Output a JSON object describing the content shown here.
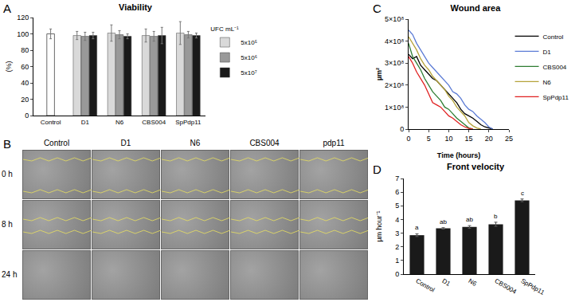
{
  "chart_data": [
    {
      "panel": "A",
      "type": "bar",
      "title": "Viability",
      "y_label": "(%)",
      "categories": [
        "Control",
        "D1",
        "N6",
        "CBS004",
        "SpPdp11"
      ],
      "legend_title": "UFC mL⁻¹",
      "legend": "right",
      "grid": false,
      "ylim": [
        0,
        120
      ],
      "yticks": [
        0,
        20,
        40,
        60,
        80,
        100,
        120
      ],
      "series": [
        {
          "name": "5x10⁵",
          "color": "#d9d9d9",
          "values": [
            null,
            98,
            101,
            98,
            101
          ],
          "errors": [
            null,
            5,
            10,
            8,
            14
          ]
        },
        {
          "name": "5x10⁶",
          "color": "#999999",
          "values": [
            null,
            97,
            99,
            97,
            99
          ],
          "errors": [
            null,
            5,
            5,
            6,
            4
          ]
        },
        {
          "name": "5x10⁷",
          "color": "#1a1a1a",
          "values": [
            null,
            98,
            97,
            98,
            98
          ],
          "errors": [
            null,
            4,
            3,
            10,
            3
          ]
        }
      ],
      "reference_bar": {
        "category": "Control",
        "value": 100,
        "error": 6,
        "color": "#ffffff"
      }
    },
    {
      "panel": "C",
      "type": "line",
      "title": "Wound area",
      "x_label": "Time (hours)",
      "y_label": "µm²",
      "legend": "right",
      "grid": false,
      "xlim": [
        0,
        25
      ],
      "xticks": [
        0,
        5,
        10,
        15,
        20,
        25
      ],
      "ylim": [
        0,
        500000000
      ],
      "yticks": [
        0,
        {
          "value": 100000000,
          "label": "1×10⁸"
        },
        {
          "value": 200000000,
          "label": "2×10⁸"
        },
        {
          "value": 300000000,
          "label": "3×10⁸"
        },
        {
          "value": 400000000,
          "label": "4×10⁸"
        },
        {
          "value": 500000000,
          "label": "5×10⁸"
        }
      ],
      "series": [
        {
          "name": "Control",
          "color": "#000000",
          "x": [
            0,
            1,
            2,
            3,
            4,
            5,
            6,
            7,
            8,
            9,
            10,
            11,
            12,
            13,
            14,
            15,
            16,
            17,
            18,
            19,
            20,
            21
          ],
          "values": [
            340000000,
            320000000,
            330000000,
            290000000,
            270000000,
            250000000,
            230000000,
            220000000,
            200000000,
            180000000,
            160000000,
            140000000,
            120000000,
            90000000,
            70000000,
            60000000,
            50000000,
            35000000,
            20000000,
            10000000,
            5000000,
            0
          ]
        },
        {
          "name": "D1",
          "color": "#5b7bd5",
          "x": [
            0,
            1,
            2,
            3,
            4,
            5,
            6,
            7,
            8,
            9,
            10,
            11,
            12,
            13,
            14,
            15,
            16,
            17,
            18,
            19,
            20,
            21
          ],
          "values": [
            450000000,
            430000000,
            390000000,
            360000000,
            330000000,
            300000000,
            280000000,
            260000000,
            240000000,
            220000000,
            200000000,
            170000000,
            160000000,
            140000000,
            110000000,
            90000000,
            80000000,
            60000000,
            45000000,
            30000000,
            10000000,
            0
          ]
        },
        {
          "name": "CBS004",
          "color": "#2e7d32",
          "x": [
            0,
            1,
            2,
            3,
            4,
            5,
            6,
            7,
            8,
            9,
            10,
            11,
            12,
            13,
            14,
            15,
            16
          ],
          "values": [
            390000000,
            330000000,
            300000000,
            270000000,
            230000000,
            200000000,
            170000000,
            150000000,
            130000000,
            100000000,
            90000000,
            70000000,
            50000000,
            35000000,
            20000000,
            5000000,
            0
          ]
        },
        {
          "name": "N6",
          "color": "#b5a33a",
          "x": [
            0,
            1,
            2,
            3,
            4,
            5,
            6,
            7,
            8,
            9,
            10,
            11,
            12,
            13,
            14,
            15,
            16,
            17,
            18
          ],
          "values": [
            420000000,
            390000000,
            360000000,
            320000000,
            290000000,
            270000000,
            240000000,
            220000000,
            200000000,
            180000000,
            150000000,
            130000000,
            100000000,
            80000000,
            60000000,
            30000000,
            15000000,
            5000000,
            0
          ]
        },
        {
          "name": "SpPdp11",
          "color": "#e02020",
          "x": [
            0,
            1,
            2,
            3,
            4,
            5,
            6,
            7,
            8,
            9,
            10,
            11,
            12,
            13,
            14,
            15,
            16
          ],
          "values": [
            330000000,
            300000000,
            260000000,
            230000000,
            200000000,
            160000000,
            120000000,
            110000000,
            100000000,
            80000000,
            60000000,
            50000000,
            35000000,
            20000000,
            10000000,
            3000000,
            0
          ]
        }
      ]
    },
    {
      "panel": "D",
      "type": "bar",
      "title": "Front velocity",
      "y_label": "µm hour⁻¹",
      "grid": false,
      "categories": [
        "Control",
        "D1",
        "N6",
        "CBS004",
        "SpPdp11"
      ],
      "values": [
        2.85,
        3.35,
        3.45,
        3.65,
        5.4
      ],
      "errors": [
        0.1,
        0.05,
        0.1,
        0.15,
        0.1
      ],
      "group_labels": [
        "a",
        "ab",
        "ab",
        "b",
        "c"
      ],
      "color": "#1a1a1a",
      "ylim": [
        0,
        7
      ],
      "yticks": [
        0,
        1,
        2,
        3,
        4,
        5,
        6,
        7
      ]
    }
  ],
  "image_panel": {
    "panel": "B",
    "columns": [
      "Control",
      "D1",
      "N6",
      "CBS004",
      "pdp11"
    ],
    "rows": [
      "0 h",
      "8 h",
      "24 h"
    ]
  }
}
